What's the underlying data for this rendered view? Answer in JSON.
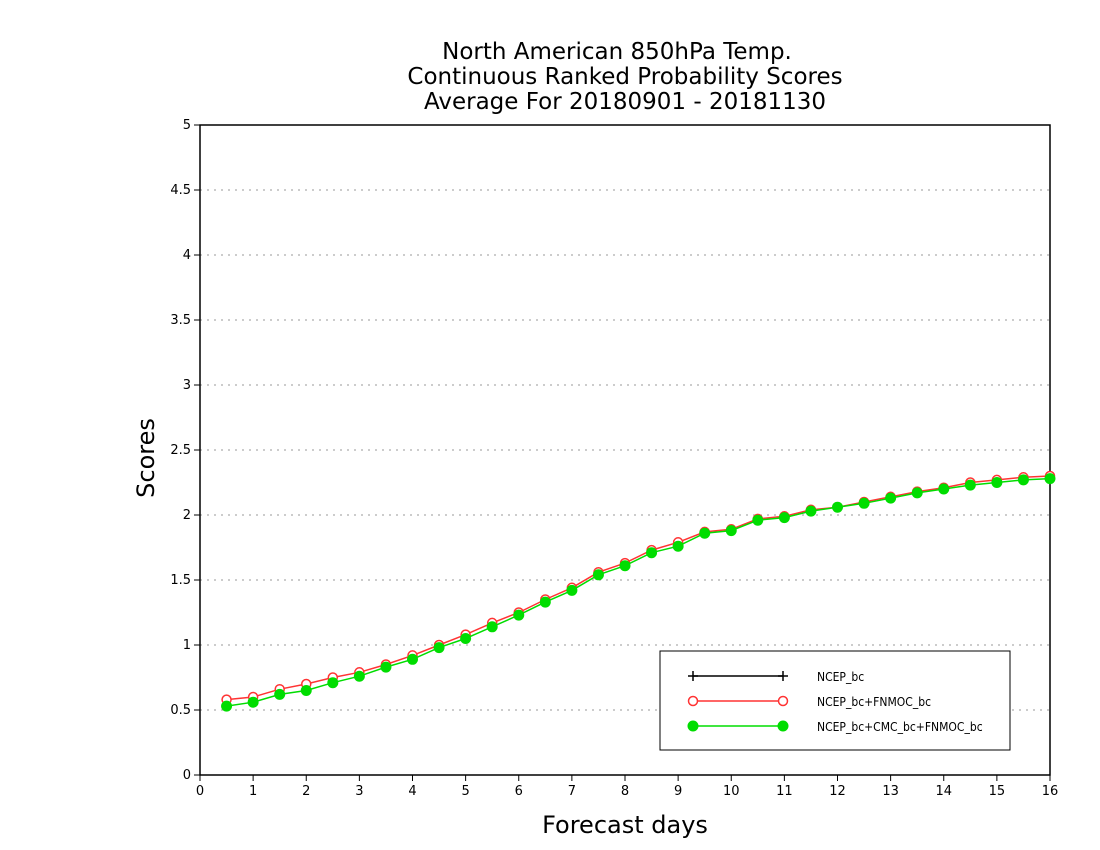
{
  "chart_data": {
    "type": "line",
    "title": [
      "North American 850hPa Temp.",
      "Continuous Ranked Probability Scores",
      "Average For 20180901 - 20181130"
    ],
    "xlabel": "Forecast days",
    "ylabel": "Scores",
    "xlim": [
      0,
      16
    ],
    "ylim": [
      0,
      5
    ],
    "xticks": [
      0,
      1,
      2,
      3,
      4,
      5,
      6,
      7,
      8,
      9,
      10,
      11,
      12,
      13,
      14,
      15,
      16
    ],
    "yticks": [
      0,
      0.5,
      1,
      1.5,
      2,
      2.5,
      3,
      3.5,
      4,
      4.5,
      5
    ],
    "ytick_labels": [
      "0",
      "0.5",
      "1",
      "1.5",
      "2",
      "2.5",
      "3",
      "3.5",
      "4",
      "4.5",
      "5"
    ],
    "grid": "horizontal dotted",
    "legend_position": "bottom-right",
    "x": [
      0.5,
      1,
      1.5,
      2,
      2.5,
      3,
      3.5,
      4,
      4.5,
      5,
      5.5,
      6,
      6.5,
      7,
      7.5,
      8,
      8.5,
      9,
      9.5,
      10,
      10.5,
      11,
      11.5,
      12,
      12.5,
      13,
      13.5,
      14,
      14.5,
      15,
      15.5,
      16
    ],
    "series": [
      {
        "name": "NCEP_bc",
        "color": "#000000",
        "marker": "plus",
        "values": null
      },
      {
        "name": "NCEP_bc+FNMOC_bc",
        "color": "#ff3333",
        "marker": "open-circle",
        "values": [
          0.58,
          0.6,
          0.66,
          0.7,
          0.75,
          0.79,
          0.85,
          0.92,
          1.0,
          1.08,
          1.17,
          1.25,
          1.35,
          1.44,
          1.56,
          1.63,
          1.73,
          1.79,
          1.87,
          1.89,
          1.97,
          1.99,
          2.04,
          2.06,
          2.1,
          2.14,
          2.18,
          2.21,
          2.25,
          2.27,
          2.29,
          2.3
        ]
      },
      {
        "name": "NCEP_bc+CMC_bc+FNMOC_bc",
        "color": "#00dd00",
        "marker": "filled-circle",
        "values": [
          0.53,
          0.56,
          0.62,
          0.65,
          0.71,
          0.76,
          0.83,
          0.89,
          0.98,
          1.05,
          1.14,
          1.23,
          1.33,
          1.42,
          1.54,
          1.61,
          1.71,
          1.76,
          1.86,
          1.88,
          1.96,
          1.98,
          2.03,
          2.06,
          2.09,
          2.13,
          2.17,
          2.2,
          2.23,
          2.25,
          2.27,
          2.28
        ]
      }
    ]
  }
}
